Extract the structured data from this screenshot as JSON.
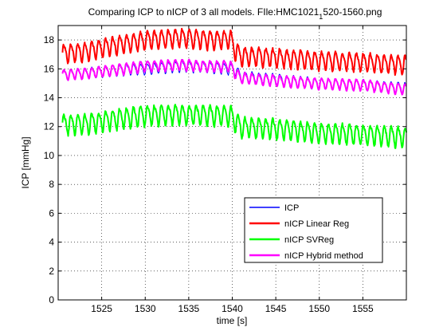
{
  "chart_data": {
    "type": "line",
    "title": "Comparing ICP to nICP of 3 all models. FIle:HMC1021",
    "title_sub": "1",
    "title_tail": "520-1560.png",
    "xlabel": "time [s]",
    "ylabel": "ICP [mmHg]",
    "xlim": [
      1520,
      1560
    ],
    "ylim": [
      0,
      19
    ],
    "xticks": [
      1525,
      1530,
      1535,
      1540,
      1545,
      1550,
      1555
    ],
    "yticks": [
      0,
      2,
      4,
      6,
      8,
      10,
      12,
      14,
      16,
      18
    ],
    "grid": true,
    "legend_position": "bottom-right",
    "series": [
      {
        "name": "ICP",
        "color": "#0000ff",
        "line_width": 1,
        "x_start": 1520.5,
        "x_end": 1560,
        "osc_amplitude": 0.35,
        "osc_period": 0.8,
        "trend_x": [
          1520.5,
          1523,
          1526,
          1530,
          1534,
          1538,
          1539.8,
          1540.4,
          1541,
          1545,
          1550,
          1555,
          1560
        ],
        "trend_y": [
          15.6,
          15.7,
          15.9,
          16.0,
          16.2,
          16.1,
          16.0,
          15.9,
          15.5,
          15.3,
          15.0,
          14.9,
          14.7
        ]
      },
      {
        "name": "nICP Linear Reg",
        "color": "#ff0000",
        "line_width": 2,
        "x_start": 1520.5,
        "x_end": 1560,
        "osc_amplitude": 0.6,
        "osc_period": 0.8,
        "trend_x": [
          1520.5,
          1523,
          1526,
          1530,
          1534,
          1538,
          1539.8,
          1540.4,
          1541,
          1545,
          1550,
          1555,
          1560
        ],
        "trend_y": [
          17.1,
          17.2,
          17.6,
          18.0,
          18.2,
          18.0,
          18.1,
          17.2,
          16.9,
          16.8,
          16.6,
          16.5,
          16.3
        ]
      },
      {
        "name": "nICP SVReg",
        "color": "#00ff00",
        "line_width": 2,
        "x_start": 1520.5,
        "x_end": 1560,
        "osc_amplitude": 0.65,
        "osc_period": 0.8,
        "trend_x": [
          1520.5,
          1523,
          1526,
          1530,
          1534,
          1538,
          1539.8,
          1540.4,
          1541,
          1545,
          1550,
          1555,
          1560
        ],
        "trend_y": [
          12.2,
          12.2,
          12.5,
          12.8,
          12.9,
          12.8,
          12.8,
          12.3,
          12.0,
          11.9,
          11.6,
          11.5,
          11.3
        ]
      },
      {
        "name": "nICP Hybrid method",
        "color": "#ff00ff",
        "line_width": 2,
        "x_start": 1520.5,
        "x_end": 1560,
        "osc_amplitude": 0.35,
        "osc_period": 0.8,
        "trend_x": [
          1520.5,
          1523,
          1526,
          1530,
          1534,
          1538,
          1539.8,
          1540.4,
          1541,
          1545,
          1550,
          1555,
          1560
        ],
        "trend_y": [
          15.6,
          15.7,
          15.9,
          16.2,
          16.3,
          16.2,
          16.2,
          15.7,
          15.4,
          15.2,
          15.0,
          14.9,
          14.6
        ]
      }
    ]
  }
}
